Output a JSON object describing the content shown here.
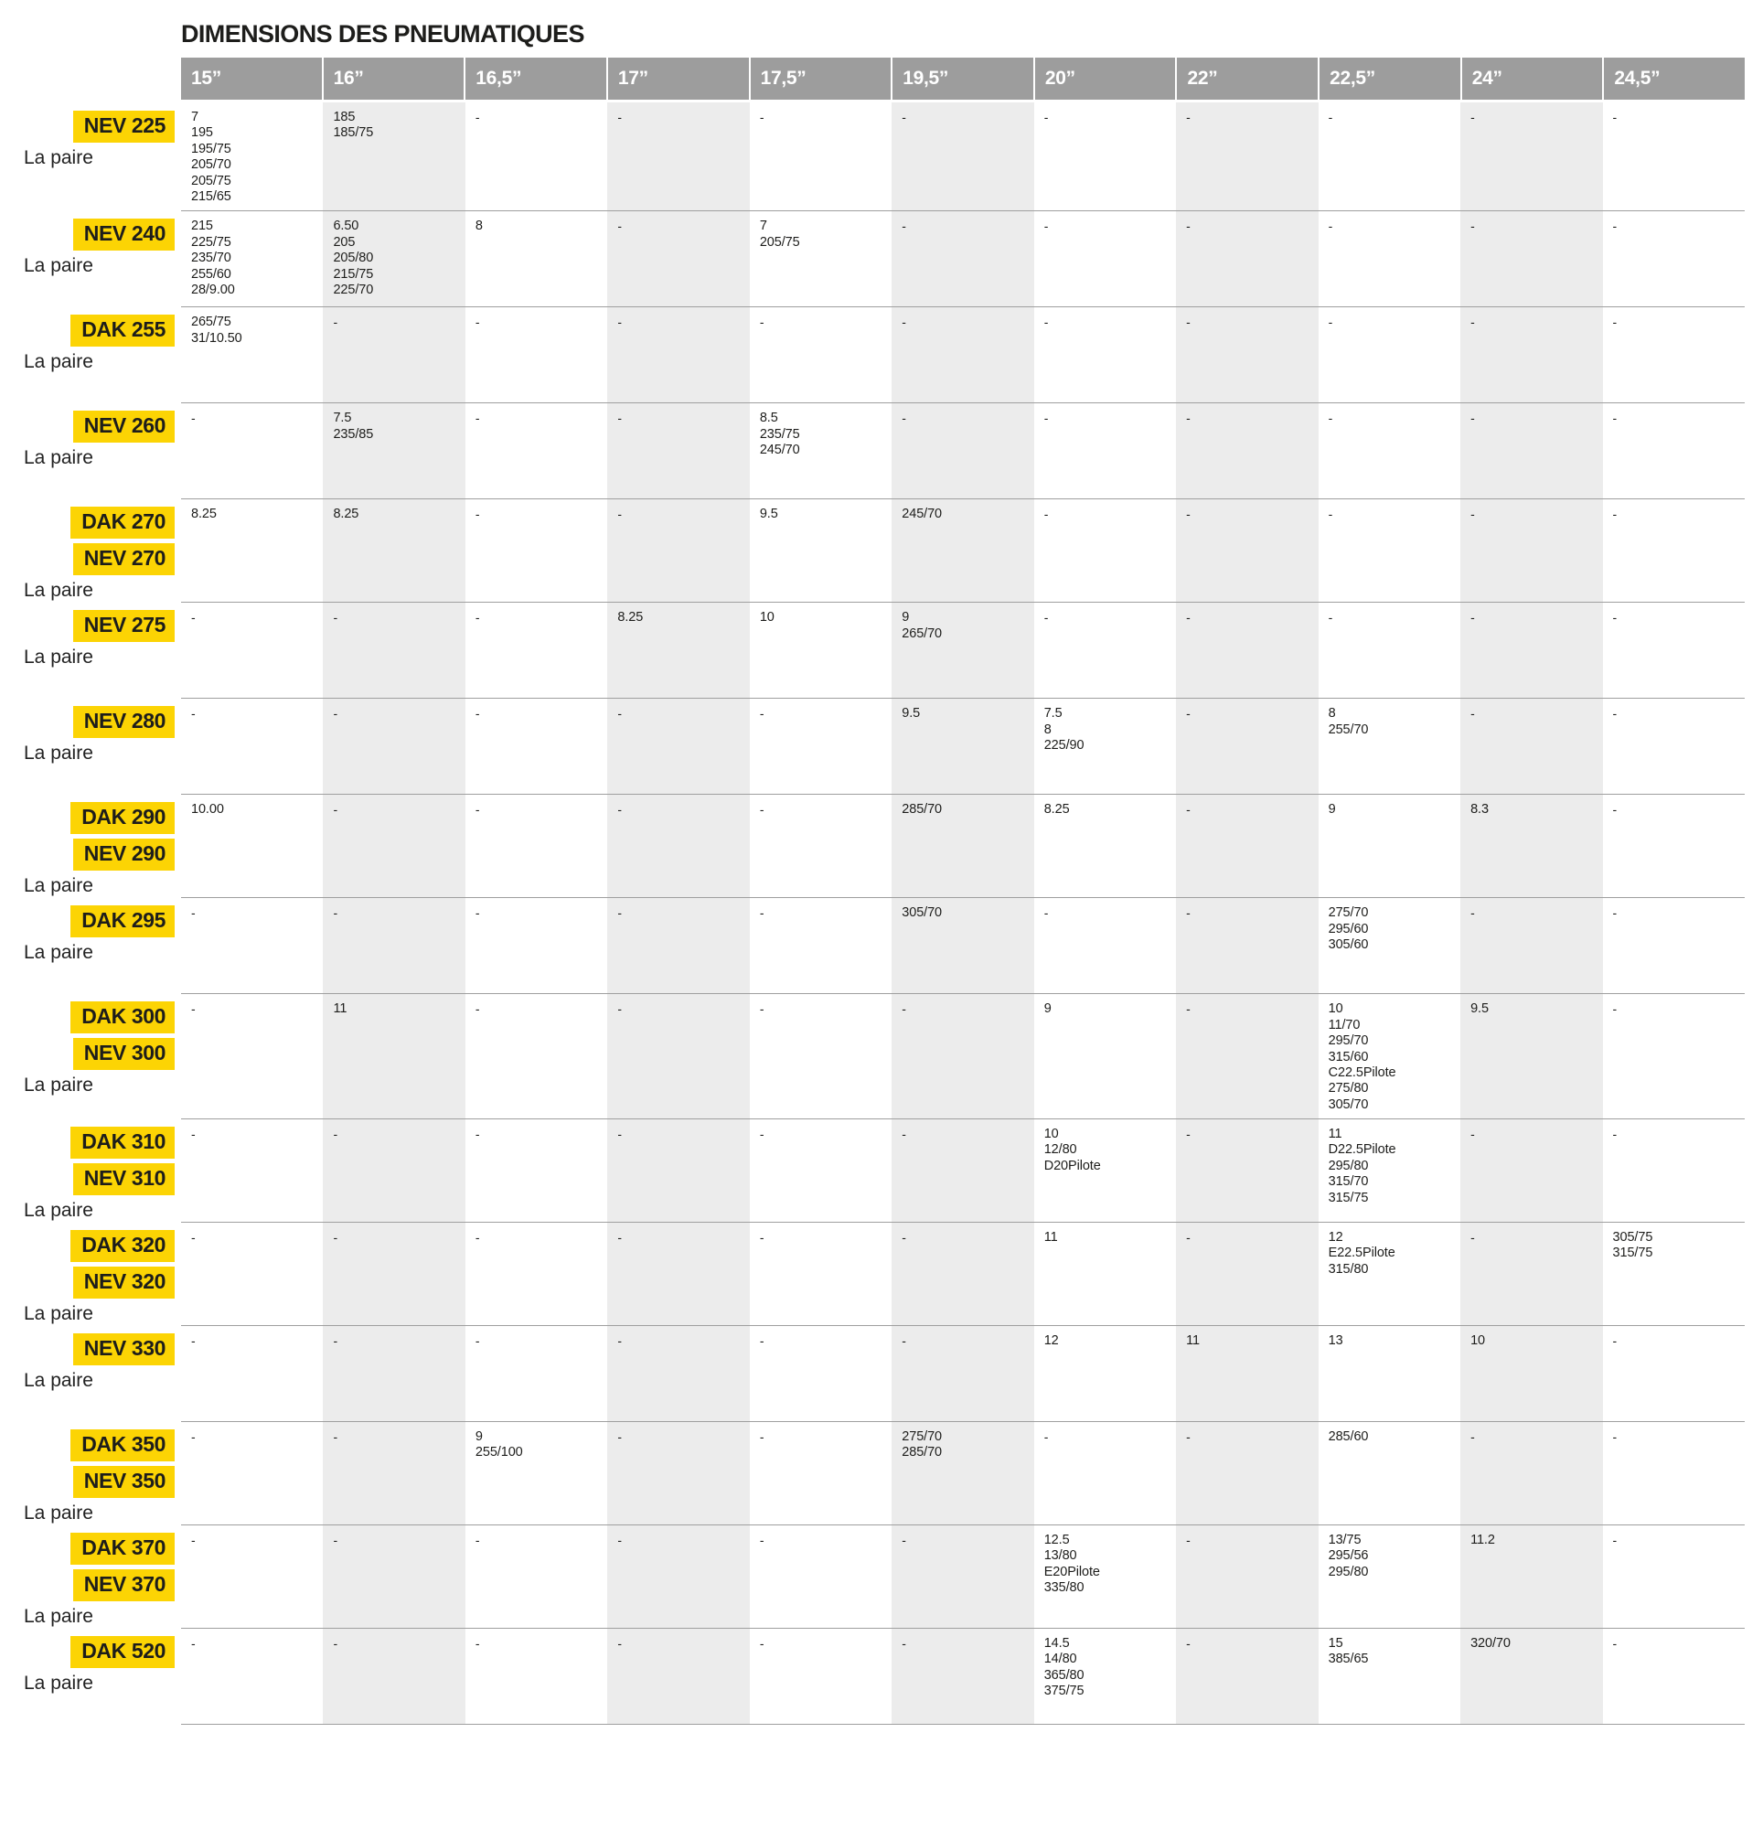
{
  "title": "DIMENSIONS DES PNEUMATIQUES",
  "pair_label": "La paire",
  "colors": {
    "badge_yellow": "#fcd404",
    "header_gray": "#9d9d9d",
    "stripe_gray": "#ececec",
    "line_gray": "#9f9f9f",
    "text": "#1d1d1b"
  },
  "columns": [
    "15”",
    "16”",
    "16,5”",
    "17”",
    "17,5”",
    "19,5”",
    "20”",
    "22”",
    "22,5”",
    "24”",
    "24,5”"
  ],
  "rows": [
    {
      "models": [
        "NEV 225"
      ],
      "cells": [
        [
          "7",
          "195",
          "195/75",
          "205/70",
          "205/75",
          "215/65"
        ],
        [
          "185",
          "185/75"
        ],
        "-",
        "-",
        "-",
        "-",
        "-",
        "-",
        "-",
        "-",
        "-"
      ]
    },
    {
      "models": [
        "NEV 240"
      ],
      "cells": [
        [
          "215",
          "225/75",
          "235/70",
          "255/60",
          "28/9.00"
        ],
        [
          "6.50",
          "205",
          "205/80",
          "215/75",
          "225/70"
        ],
        [
          "8"
        ],
        "-",
        [
          "7",
          "205/75"
        ],
        "-",
        "-",
        "-",
        "-",
        "-",
        "-"
      ]
    },
    {
      "models": [
        "DAK 255"
      ],
      "cells": [
        [
          "265/75",
          "31/10.50"
        ],
        "-",
        "-",
        "-",
        "-",
        "-",
        "-",
        "-",
        "-",
        "-",
        "-"
      ]
    },
    {
      "models": [
        "NEV 260"
      ],
      "cells": [
        "-",
        [
          "7.5",
          "235/85"
        ],
        "-",
        "-",
        [
          "8.5",
          "235/75",
          "245/70"
        ],
        "-",
        "-",
        "-",
        "-",
        "-",
        "-"
      ]
    },
    {
      "models": [
        "DAK 270",
        "NEV 270"
      ],
      "cells": [
        [
          "8.25"
        ],
        [
          "8.25"
        ],
        "-",
        "-",
        [
          "9.5"
        ],
        [
          "245/70"
        ],
        "-",
        "-",
        "-",
        "-",
        "-"
      ]
    },
    {
      "models": [
        "NEV 275"
      ],
      "cells": [
        "-",
        "-",
        "-",
        [
          "8.25"
        ],
        [
          "10"
        ],
        [
          "9",
          "265/70"
        ],
        "-",
        "-",
        "-",
        "-",
        "-"
      ]
    },
    {
      "models": [
        "NEV 280"
      ],
      "cells": [
        "-",
        "-",
        "-",
        "-",
        "-",
        [
          "9.5"
        ],
        [
          "7.5",
          "8",
          "225/90"
        ],
        "-",
        [
          "8",
          "255/70"
        ],
        "-",
        "-"
      ]
    },
    {
      "models": [
        "DAK 290",
        "NEV 290"
      ],
      "cells": [
        [
          "10.00"
        ],
        "-",
        "-",
        "-",
        "-",
        [
          "285/70"
        ],
        [
          "8.25"
        ],
        "-",
        [
          "9"
        ],
        [
          "8.3"
        ],
        "-"
      ]
    },
    {
      "models": [
        "DAK 295"
      ],
      "cells": [
        "-",
        "-",
        "-",
        "-",
        "-",
        [
          "305/70"
        ],
        "-",
        "-",
        [
          "275/70",
          "295/60",
          "305/60"
        ],
        "-",
        "-"
      ]
    },
    {
      "models": [
        "DAK 300",
        "NEV 300"
      ],
      "cells": [
        "-",
        [
          "11"
        ],
        "-",
        "-",
        "-",
        "-",
        [
          "9"
        ],
        "-",
        [
          "10",
          "11/70",
          "295/70",
          "315/60",
          "C22.5Pilote",
          "275/80",
          "305/70"
        ],
        [
          "9.5"
        ],
        "-"
      ]
    },
    {
      "models": [
        "DAK 310",
        "NEV 310"
      ],
      "cells": [
        "-",
        "-",
        "-",
        "-",
        "-",
        "-",
        [
          "10",
          "12/80",
          "D20Pilote"
        ],
        "-",
        [
          "11",
          "D22.5Pilote",
          "295/80",
          "315/70",
          "315/75"
        ],
        "-",
        "-"
      ]
    },
    {
      "models": [
        "DAK 320",
        "NEV 320"
      ],
      "cells": [
        "-",
        "-",
        "-",
        "-",
        "-",
        "-",
        [
          "11"
        ],
        "-",
        [
          "12",
          "E22.5Pilote",
          "315/80"
        ],
        "-",
        [
          "305/75",
          "315/75"
        ]
      ]
    },
    {
      "models": [
        "NEV 330"
      ],
      "cells": [
        "-",
        "-",
        "-",
        "-",
        "-",
        "-",
        [
          "12"
        ],
        [
          "11"
        ],
        [
          "13"
        ],
        [
          "10"
        ],
        "-"
      ]
    },
    {
      "models": [
        "DAK 350",
        "NEV 350"
      ],
      "cells": [
        "-",
        "-",
        [
          "9",
          "255/100"
        ],
        "-",
        "-",
        [
          "275/70",
          "285/70"
        ],
        "-",
        "-",
        [
          "285/60"
        ],
        "-",
        "-"
      ]
    },
    {
      "models": [
        "DAK 370",
        "NEV 370"
      ],
      "cells": [
        "-",
        "-",
        "-",
        "-",
        "-",
        "-",
        [
          "12.5",
          "13/80",
          "E20Pilote",
          "335/80"
        ],
        "-",
        [
          "13/75",
          "295/56",
          "295/80"
        ],
        [
          "11.2"
        ],
        "-"
      ]
    },
    {
      "models": [
        "DAK 520"
      ],
      "cells": [
        "-",
        "-",
        "-",
        "-",
        "-",
        "-",
        [
          "14.5",
          "14/80",
          "365/80",
          "375/75"
        ],
        "-",
        [
          "15",
          "385/65"
        ],
        [
          "320/70"
        ],
        "-"
      ]
    }
  ]
}
